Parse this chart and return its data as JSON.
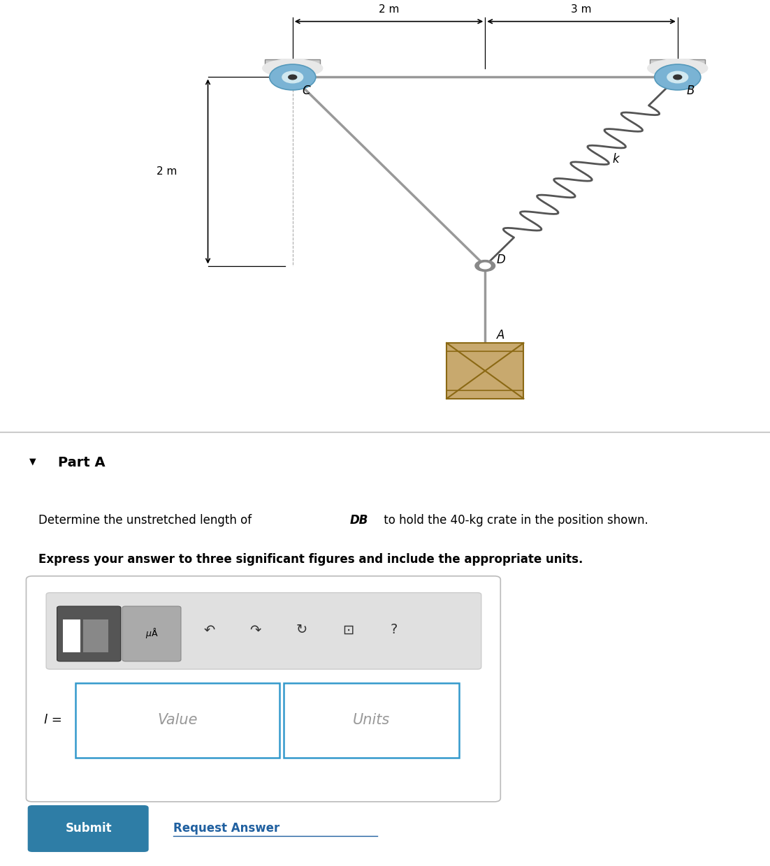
{
  "bg_color_top": "#ffffff",
  "bg_color_bottom": "#f0f0f0",
  "part_a_label": "Part A",
  "triangle_label": "▼",
  "label_l_eq": "l =",
  "placeholder_value": "Value",
  "placeholder_units": "Units",
  "submit_text": "Submit",
  "request_answer_text": "Request Answer",
  "dim_2m_top": "2 m",
  "dim_3m_top": "3 m",
  "dim_2m_left": "2 m",
  "label_C": "C",
  "label_B": "B",
  "label_D": "D",
  "label_A": "A",
  "label_k": "k",
  "rope_color": "#999999",
  "spring_color": "#555555",
  "pulley_color_blue": "#7ab3d4",
  "pulley_white": "#e8e8e8",
  "crate_light": "#c8a96e",
  "crate_dark": "#8b6914",
  "submit_bg": "#2e7da6",
  "submit_text_color": "#ffffff",
  "link_color": "#2060a0",
  "C": [
    0.38,
    0.82
  ],
  "B": [
    0.88,
    0.82
  ],
  "D": [
    0.63,
    0.38
  ],
  "A_pt": [
    0.63,
    0.2
  ]
}
